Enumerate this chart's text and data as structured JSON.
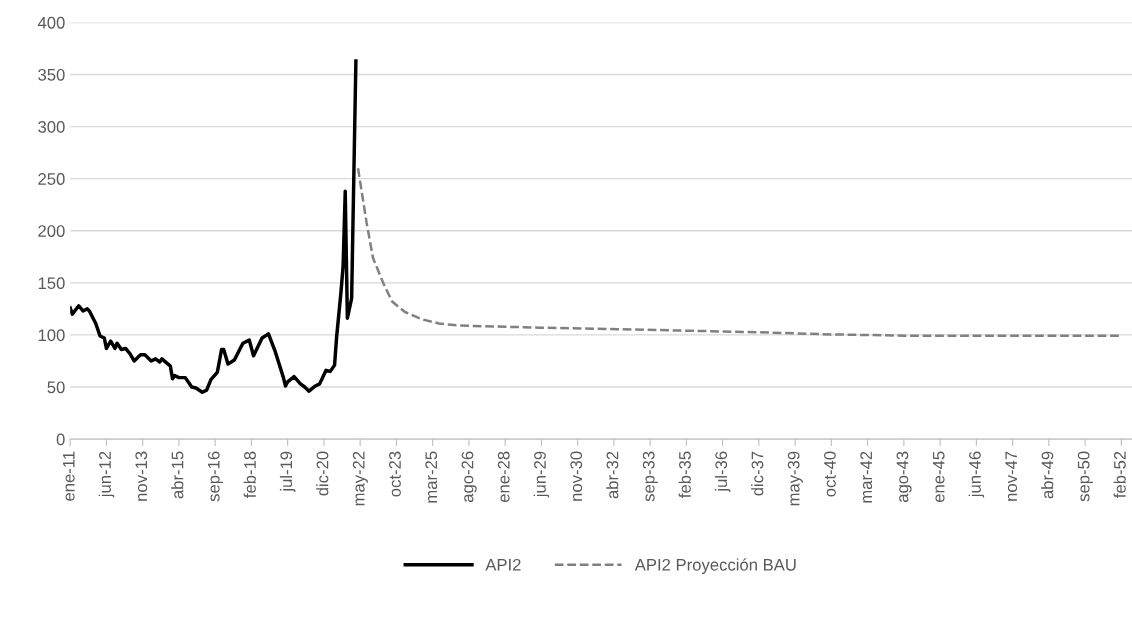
{
  "chart_data": {
    "type": "line",
    "ylim": [
      0,
      400
    ],
    "yticks": [
      0,
      50,
      100,
      150,
      200,
      250,
      300,
      350,
      400
    ],
    "xlim": [
      "2011-01",
      "2052-07"
    ],
    "xticks": [
      {
        "value": "2011-01",
        "label": "ene-11"
      },
      {
        "value": "2012-06",
        "label": "jun-12"
      },
      {
        "value": "2013-11",
        "label": "nov-13"
      },
      {
        "value": "2015-04",
        "label": "abr-15"
      },
      {
        "value": "2016-09",
        "label": "sep-16"
      },
      {
        "value": "2018-02",
        "label": "feb-18"
      },
      {
        "value": "2019-07",
        "label": "jul-19"
      },
      {
        "value": "2020-12",
        "label": "dic-20"
      },
      {
        "value": "2022-05",
        "label": "may-22"
      },
      {
        "value": "2023-10",
        "label": "oct-23"
      },
      {
        "value": "2025-03",
        "label": "mar-25"
      },
      {
        "value": "2026-08",
        "label": "ago-26"
      },
      {
        "value": "2028-01",
        "label": "ene-28"
      },
      {
        "value": "2029-06",
        "label": "jun-29"
      },
      {
        "value": "2030-11",
        "label": "nov-30"
      },
      {
        "value": "2032-04",
        "label": "abr-32"
      },
      {
        "value": "2033-09",
        "label": "sep-33"
      },
      {
        "value": "2035-02",
        "label": "feb-35"
      },
      {
        "value": "2036-07",
        "label": "jul-36"
      },
      {
        "value": "2037-12",
        "label": "dic-37"
      },
      {
        "value": "2039-05",
        "label": "may-39"
      },
      {
        "value": "2040-10",
        "label": "oct-40"
      },
      {
        "value": "2042-03",
        "label": "mar-42"
      },
      {
        "value": "2043-08",
        "label": "ago-43"
      },
      {
        "value": "2045-01",
        "label": "ene-45"
      },
      {
        "value": "2046-06",
        "label": "jun-46"
      },
      {
        "value": "2047-11",
        "label": "nov-47"
      },
      {
        "value": "2049-04",
        "label": "abr-49"
      },
      {
        "value": "2050-09",
        "label": "sep-50"
      },
      {
        "value": "2052-02",
        "label": "feb-52"
      }
    ],
    "grid": "y",
    "legend": "bottom",
    "marker": "none",
    "series": [
      {
        "name": "API2",
        "color": "#000000",
        "line_style": "solid",
        "x": [
          "2011-01",
          "2011-02",
          "2011-05",
          "2011-07",
          "2011-09",
          "2011-10",
          "2012-01",
          "2012-03",
          "2012-05",
          "2012-06",
          "2012-08",
          "2012-10",
          "2012-11",
          "2013-01",
          "2013-03",
          "2013-05",
          "2013-07",
          "2013-10",
          "2013-12",
          "2014-03",
          "2014-05",
          "2014-07",
          "2014-08",
          "2014-12",
          "2015-01",
          "2015-02",
          "2015-04",
          "2015-07",
          "2015-10",
          "2015-12",
          "2016-03",
          "2016-05",
          "2016-07",
          "2016-10",
          "2016-12",
          "2017-01",
          "2017-03",
          "2017-06",
          "2017-10",
          "2018-01",
          "2018-03",
          "2018-07",
          "2018-10",
          "2019-01",
          "2019-03",
          "2019-05",
          "2019-06",
          "2019-07",
          "2019-10",
          "2020-01",
          "2020-03",
          "2020-05",
          "2020-08",
          "2020-10",
          "2021-01",
          "2021-03",
          "2021-05",
          "2021-06",
          "2021-08",
          "2021-09",
          "2021-10",
          "2021-11",
          "2022-01",
          "2022-03"
        ],
        "values": [
          126,
          120,
          128,
          123,
          125,
          123,
          111,
          99,
          97,
          87,
          94,
          87,
          92,
          86,
          87,
          82,
          75,
          81,
          81,
          75,
          77,
          74,
          77,
          70,
          58,
          61,
          59,
          59,
          50,
          49,
          45,
          47,
          57,
          64,
          86,
          86,
          72,
          76,
          92,
          95,
          80,
          97,
          101,
          85,
          72,
          59,
          51,
          55,
          60,
          53,
          50,
          46,
          51,
          53,
          66,
          65,
          71,
          99,
          141,
          166,
          238,
          116,
          135,
          363
        ]
      },
      {
        "name": "API2 Proyección BAU",
        "color": "#808080",
        "line_style": "dashed",
        "x": [
          "2022-04",
          "2022-08",
          "2022-11",
          "2023-04",
          "2023-08",
          "2024-02",
          "2024-10",
          "2025-06",
          "2026-03",
          "2029-05",
          "2032-06",
          "2038-01",
          "2040-10",
          "2043-08",
          "2052-02"
        ],
        "values": [
          260,
          208,
          174,
          149,
          132,
          122,
          115,
          111,
          109,
          107,
          105.5,
          102.5,
          100.5,
          99.3,
          99.3
        ]
      }
    ]
  }
}
